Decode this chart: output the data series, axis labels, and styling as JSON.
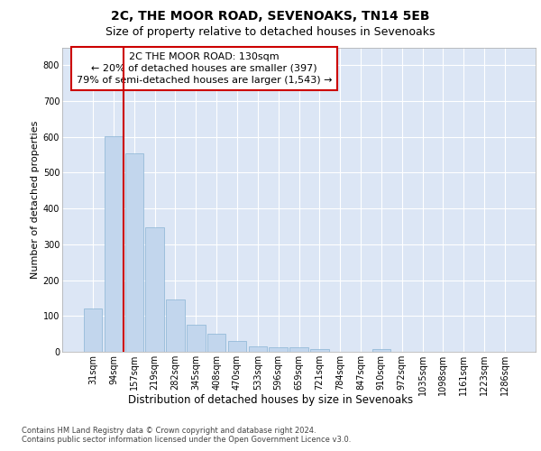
{
  "title1": "2C, THE MOOR ROAD, SEVENOAKS, TN14 5EB",
  "title2": "Size of property relative to detached houses in Sevenoaks",
  "xlabel": "Distribution of detached houses by size in Sevenoaks",
  "ylabel": "Number of detached properties",
  "categories": [
    "31sqm",
    "94sqm",
    "157sqm",
    "219sqm",
    "282sqm",
    "345sqm",
    "408sqm",
    "470sqm",
    "533sqm",
    "596sqm",
    "659sqm",
    "721sqm",
    "784sqm",
    "847sqm",
    "910sqm",
    "972sqm",
    "1035sqm",
    "1098sqm",
    "1161sqm",
    "1223sqm",
    "1286sqm"
  ],
  "values": [
    122,
    603,
    553,
    347,
    147,
    75,
    50,
    30,
    14,
    12,
    12,
    7,
    0,
    0,
    8,
    0,
    0,
    0,
    0,
    0,
    0
  ],
  "bar_color": "#c2d6ed",
  "bar_edge_color": "#8ab4d4",
  "vline_pos": 1.5,
  "vline_color": "#cc0000",
  "annotation_line1": "2C THE MOOR ROAD: 130sqm",
  "annotation_line2": "← 20% of detached houses are smaller (397)",
  "annotation_line3": "79% of semi-detached houses are larger (1,543) →",
  "annotation_box_edgecolor": "#cc0000",
  "ylim": [
    0,
    850
  ],
  "yticks": [
    0,
    100,
    200,
    300,
    400,
    500,
    600,
    700,
    800
  ],
  "bg_color": "#dce6f5",
  "grid_color": "#ffffff",
  "title1_fontsize": 10,
  "title2_fontsize": 9,
  "tick_fontsize": 7,
  "ylabel_fontsize": 8,
  "xlabel_fontsize": 8.5,
  "annot_fontsize": 8,
  "footer": "Contains HM Land Registry data © Crown copyright and database right 2024.\nContains public sector information licensed under the Open Government Licence v3.0.",
  "footer_fontsize": 6
}
